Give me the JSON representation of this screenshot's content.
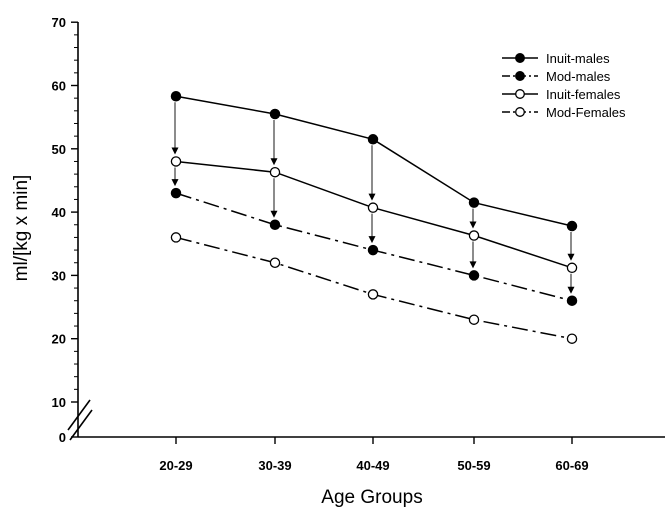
{
  "chart_data": {
    "type": "line",
    "title": "",
    "xlabel": "Age Groups",
    "ylabel": "ml/[kg x min]",
    "categories": [
      "20-29",
      "30-39",
      "40-49",
      "50-59",
      "60-69"
    ],
    "y_ticks": [
      "0",
      "10",
      "20",
      "30",
      "40",
      "50",
      "60",
      "70"
    ],
    "ylim": [
      0,
      70
    ],
    "y_axis_break": [
      0,
      10
    ],
    "grid": false,
    "legend_position": "top-right",
    "series": [
      {
        "name": "Inuit-males",
        "values": [
          58.3,
          55.5,
          51.5,
          41.5,
          37.8
        ],
        "marker": "filled",
        "dash": "solid"
      },
      {
        "name": "Mod-males",
        "values": [
          43.0,
          38.0,
          34.0,
          30.0,
          26.0
        ],
        "marker": "filled",
        "dash": "dash-dot"
      },
      {
        "name": "Inuit-females",
        "values": [
          48.0,
          46.3,
          40.7,
          36.3,
          31.2
        ],
        "marker": "open",
        "dash": "solid"
      },
      {
        "name": "Mod-Females",
        "values": [
          36.0,
          32.0,
          27.0,
          23.0,
          20.0
        ],
        "marker": "open",
        "dash": "dash-dot"
      }
    ],
    "arrows": [
      {
        "from_series": "Inuit-males",
        "to_series": "Inuit-females",
        "categories": [
          "20-29",
          "30-39",
          "40-49",
          "50-59",
          "60-69"
        ]
      },
      {
        "from_series": "Inuit-females",
        "to_series": "Mod-males",
        "categories": [
          "20-29",
          "30-39",
          "40-49",
          "50-59",
          "60-69"
        ]
      }
    ]
  }
}
